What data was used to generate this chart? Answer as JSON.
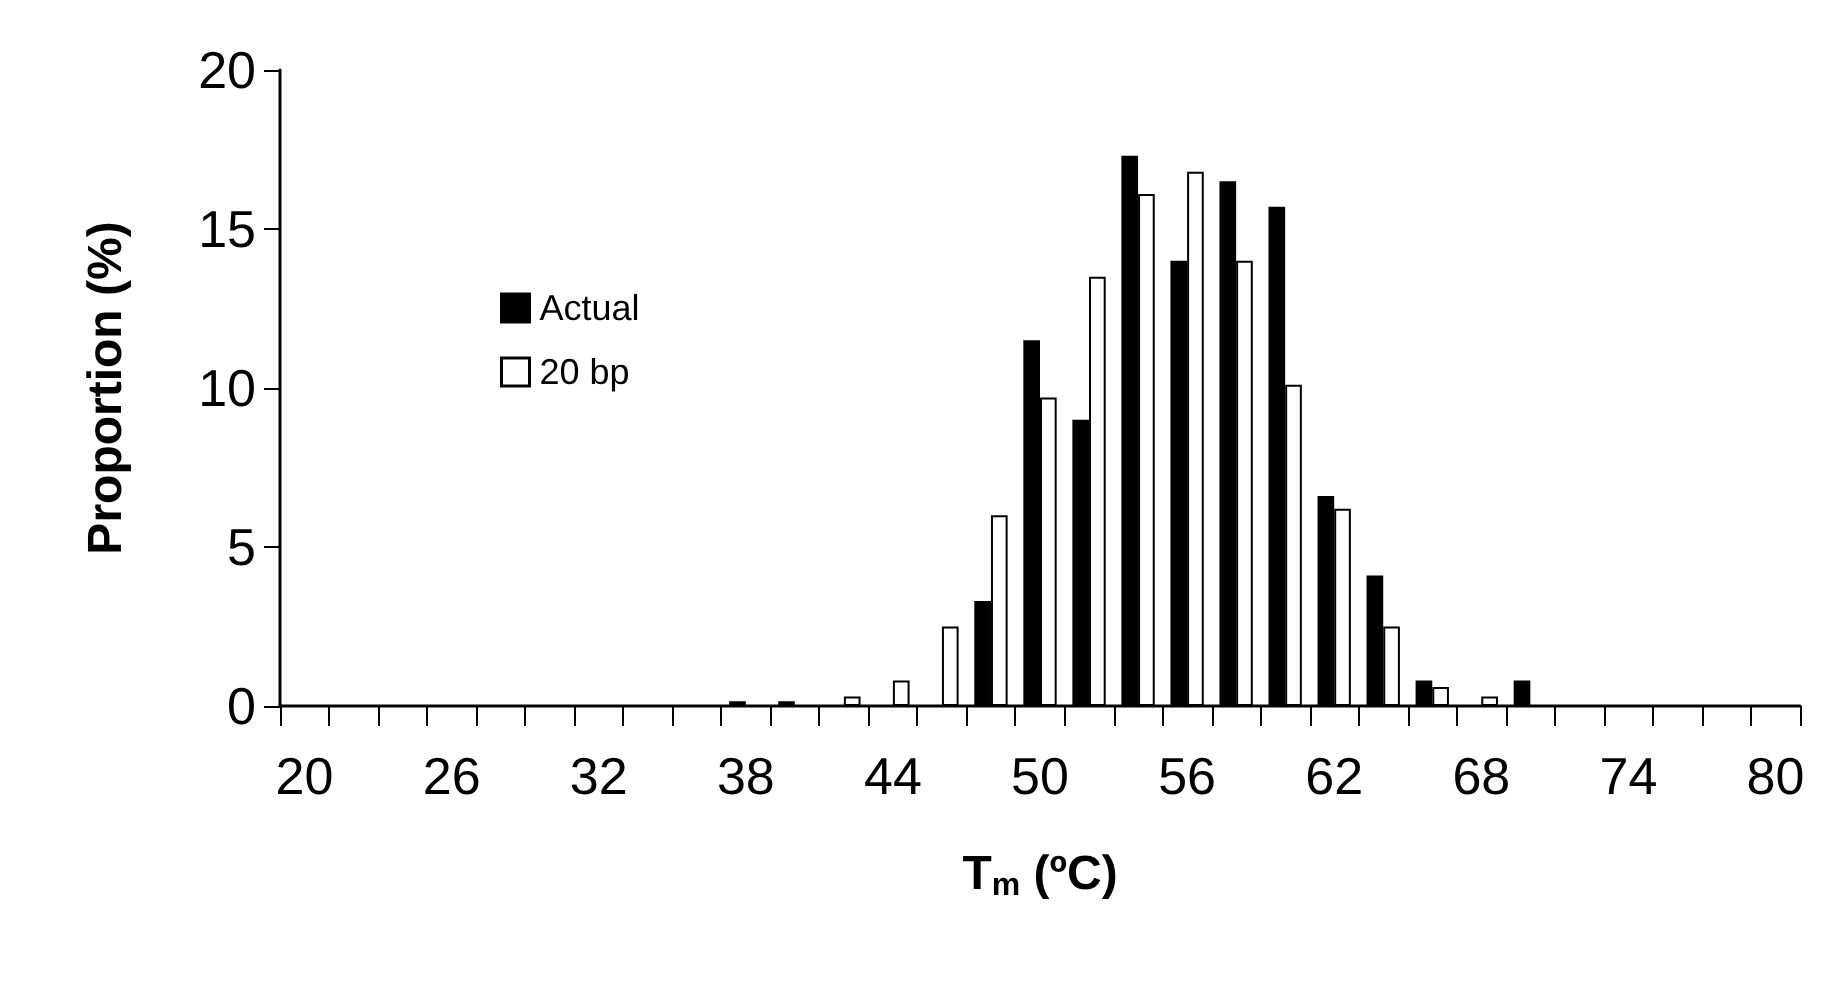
{
  "chart_data": {
    "type": "bar",
    "xlabel": "T$_{m}$ (ºC)",
    "ylabel": "Proportion (%)",
    "categories": [
      "20",
      null,
      null,
      "26",
      null,
      null,
      "32",
      null,
      null,
      "38",
      null,
      null,
      "44",
      null,
      null,
      "50",
      null,
      null,
      "56",
      null,
      null,
      "62",
      null,
      null,
      "68",
      null,
      null,
      "74",
      null,
      null,
      "80"
    ],
    "series": [
      {
        "name": "Actual",
        "color": "#000000",
        "values": [
          0,
          0,
          0,
          0,
          0,
          0,
          0,
          0,
          0,
          0.15,
          0.15,
          0,
          0,
          0,
          3.3,
          11.5,
          9,
          17.3,
          14,
          16.5,
          15.7,
          6.6,
          4.1,
          0.8,
          0,
          0.8,
          0,
          0,
          0,
          0,
          0
        ]
      },
      {
        "name": "20 bp",
        "color": "#ffffff",
        "values": [
          0,
          0,
          0,
          0,
          0,
          0,
          0,
          0,
          0,
          0,
          0,
          0.3,
          0.8,
          2.5,
          6,
          9.7,
          13.5,
          16.1,
          16.8,
          14,
          10.1,
          6.2,
          2.5,
          0.6,
          0.3,
          0,
          0,
          0,
          0,
          0,
          0
        ]
      }
    ],
    "ylim": [
      0,
      20
    ],
    "yticks": [
      0,
      5,
      10,
      15,
      20
    ],
    "grid": false,
    "legend": "left"
  }
}
